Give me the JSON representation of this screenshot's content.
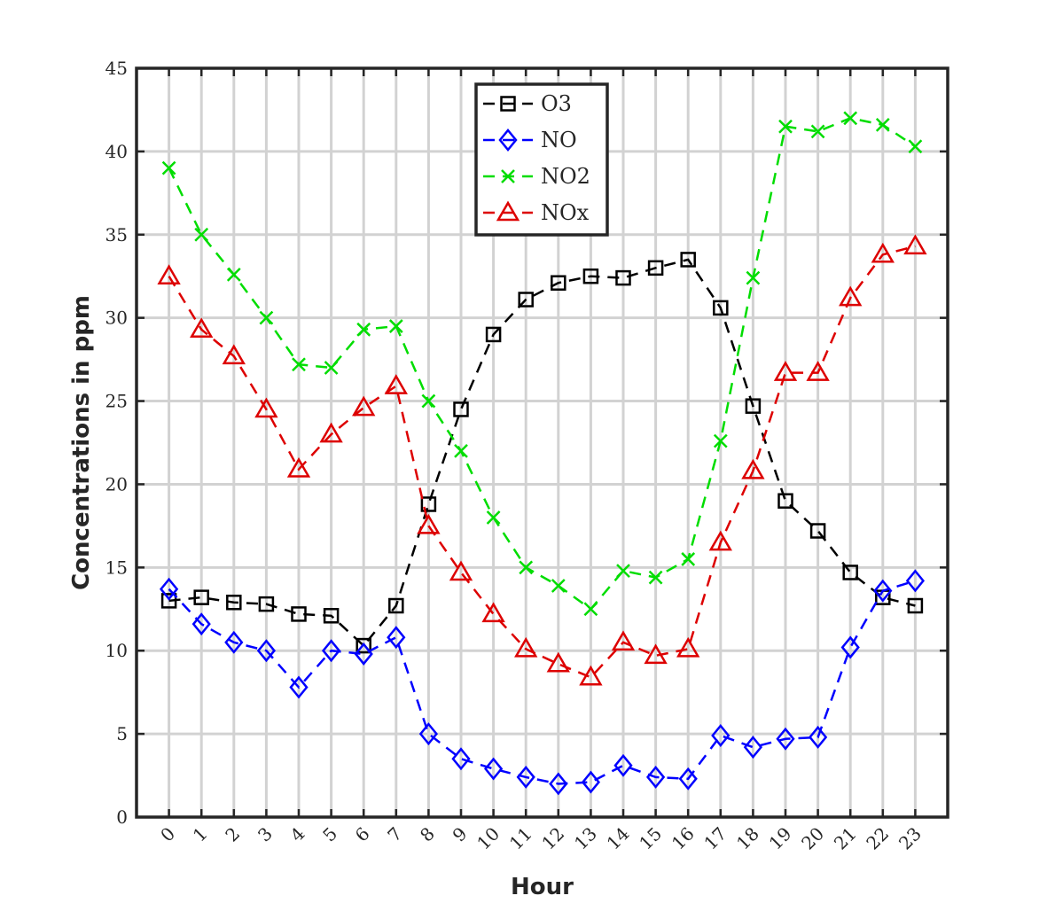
{
  "chart_data": {
    "type": "line",
    "xlabel": "Hour",
    "ylabel": "Concentrations in ppm",
    "x": [
      0,
      1,
      2,
      3,
      4,
      5,
      6,
      7,
      8,
      9,
      10,
      11,
      12,
      13,
      14,
      15,
      16,
      17,
      18,
      19,
      20,
      21,
      22,
      23
    ],
    "x_tick_labels": [
      "0",
      "1",
      "2",
      "3",
      "4",
      "5",
      "6",
      "7",
      "8",
      "9",
      "10",
      "11",
      "12",
      "13",
      "14",
      "15",
      "16",
      "17",
      "18",
      "19",
      "20",
      "21",
      "22",
      "23"
    ],
    "xlim": [
      -1,
      24
    ],
    "ylim": [
      0,
      45
    ],
    "y_ticks": [
      0,
      5,
      10,
      15,
      20,
      25,
      30,
      35,
      40,
      45
    ],
    "grid": true,
    "legend_position": "top-center",
    "series": [
      {
        "name": "O3",
        "color": "#000000",
        "marker": "square",
        "values": [
          13.0,
          13.2,
          12.9,
          12.8,
          12.2,
          12.1,
          10.3,
          12.7,
          18.8,
          24.5,
          29.0,
          31.1,
          32.1,
          32.5,
          32.4,
          33.0,
          33.5,
          30.6,
          24.7,
          19.0,
          17.2,
          14.7,
          13.2,
          12.7
        ]
      },
      {
        "name": "NO",
        "color": "#0000ff",
        "marker": "diamond",
        "values": [
          13.7,
          11.6,
          10.5,
          10.0,
          7.8,
          10.0,
          9.8,
          10.8,
          5.0,
          3.5,
          2.9,
          2.4,
          2.0,
          2.1,
          3.1,
          2.4,
          2.3,
          4.9,
          4.2,
          4.7,
          4.8,
          10.2,
          13.6,
          14.2
        ]
      },
      {
        "name": "NO2",
        "color": "#00dd00",
        "marker": "x",
        "values": [
          39.0,
          35.0,
          32.6,
          30.0,
          27.2,
          27.0,
          29.3,
          29.5,
          25.0,
          22.0,
          18.0,
          15.0,
          13.9,
          12.5,
          14.8,
          14.4,
          15.5,
          22.6,
          32.4,
          41.5,
          41.2,
          42.0,
          41.6,
          40.3
        ]
      },
      {
        "name": "NOx",
        "color": "#dd0000",
        "marker": "triangle",
        "values": [
          32.5,
          29.3,
          27.7,
          24.5,
          20.9,
          23.0,
          24.6,
          25.9,
          17.5,
          14.7,
          12.2,
          10.1,
          9.2,
          8.4,
          10.5,
          9.7,
          10.1,
          16.5,
          20.8,
          26.7,
          26.7,
          31.2,
          33.8,
          34.3
        ]
      }
    ]
  }
}
